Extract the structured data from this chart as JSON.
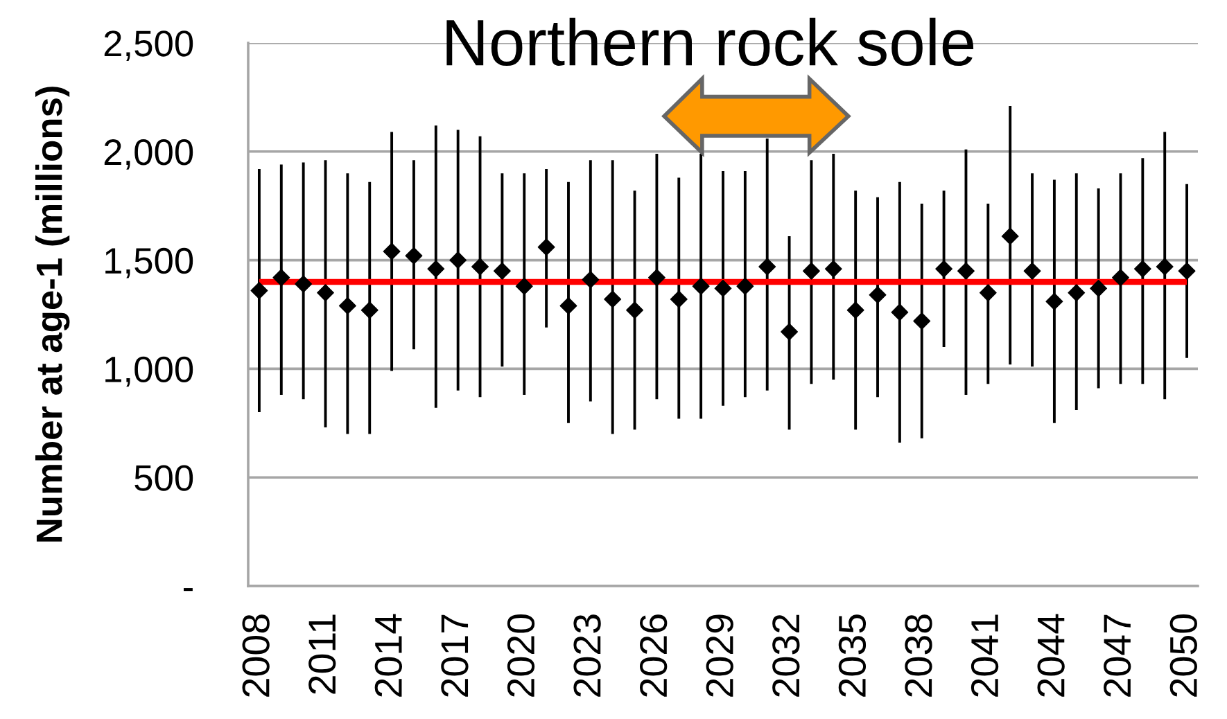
{
  "chart_data": {
    "type": "scatter",
    "title": "Northern rock sole",
    "ylabel": "Number at age-1 (millions)",
    "categories": [
      "2008",
      null,
      null,
      "2011",
      null,
      null,
      "2014",
      null,
      null,
      "2017",
      null,
      null,
      "2020",
      null,
      null,
      "2023",
      null,
      null,
      "2026",
      null,
      null,
      "2029",
      null,
      null,
      "2032",
      null,
      null,
      "2035",
      null,
      null,
      "2038",
      null,
      null,
      "2041",
      null,
      null,
      "2044",
      null,
      null,
      "2047",
      null,
      null,
      "2050"
    ],
    "series": [
      {
        "color": "#000000",
        "values": [
          1360,
          1420,
          1390,
          1350,
          1290,
          1270,
          1540,
          1520,
          1460,
          1500,
          1470,
          1450,
          1380,
          1560,
          1290,
          1410,
          1320,
          1270,
          1420,
          1320,
          1380,
          1370,
          1380,
          1470,
          1170,
          1450,
          1460,
          1270,
          1340,
          1260,
          1220,
          1460,
          1450,
          1350,
          1610,
          1450,
          1310,
          1350,
          1370,
          1420,
          1460,
          1470,
          1450
        ],
        "errors": [
          [
            800,
            1920
          ],
          [
            880,
            1940
          ],
          [
            860,
            1950
          ],
          [
            730,
            1960
          ],
          [
            700,
            1900
          ],
          [
            700,
            1860
          ],
          [
            990,
            2090
          ],
          [
            1090,
            1960
          ],
          [
            820,
            2120
          ],
          [
            900,
            2100
          ],
          [
            870,
            2070
          ],
          [
            1010,
            1900
          ],
          [
            880,
            1900
          ],
          [
            1190,
            1920
          ],
          [
            750,
            1860
          ],
          [
            850,
            1960
          ],
          [
            700,
            1960
          ],
          [
            720,
            1820
          ],
          [
            860,
            1990
          ],
          [
            770,
            1880
          ],
          [
            770,
            1990
          ],
          [
            830,
            1910
          ],
          [
            870,
            1910
          ],
          [
            900,
            2060
          ],
          [
            720,
            1610
          ],
          [
            930,
            1960
          ],
          [
            950,
            1990
          ],
          [
            720,
            1820
          ],
          [
            870,
            1790
          ],
          [
            660,
            1860
          ],
          [
            680,
            1760
          ],
          [
            1100,
            1820
          ],
          [
            880,
            2010
          ],
          [
            930,
            1760
          ],
          [
            1020,
            2210
          ],
          [
            1010,
            1900
          ],
          [
            750,
            1870
          ],
          [
            810,
            1900
          ],
          [
            910,
            1830
          ],
          [
            930,
            1900
          ],
          [
            930,
            1970
          ],
          [
            860,
            2090
          ],
          [
            1050,
            1850
          ]
        ]
      }
    ],
    "ylim": [
      0,
      2500
    ],
    "yticks": [
      {
        "value": 0,
        "label": "-"
      },
      500,
      {
        "value": 1000,
        "label": "1,000"
      },
      {
        "value": 1500,
        "label": "1,500"
      },
      {
        "value": 2000,
        "label": "2,000"
      },
      {
        "value": 2500,
        "label": "2,500"
      }
    ],
    "grid": "y",
    "marker": "diamond",
    "ref_lines": [
      {
        "axis": "y",
        "value": 1400,
        "color": "#ff0000"
      }
    ]
  }
}
